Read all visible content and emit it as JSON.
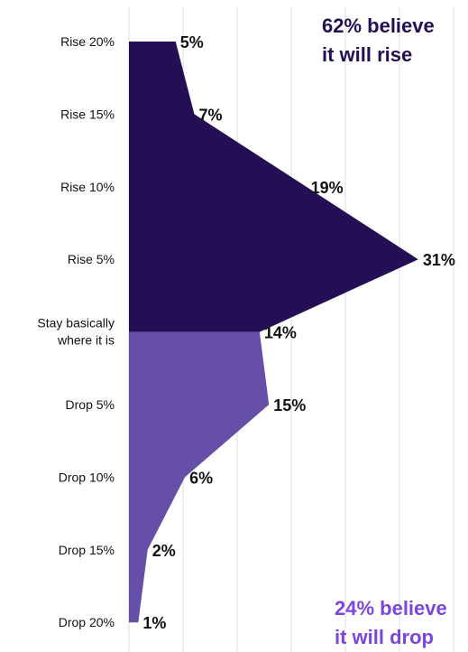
{
  "colors": {
    "rise": "#240f55",
    "drop": "#664fa8",
    "grid": "#dcdcdc",
    "text": "#111111",
    "callout_rise": "#240f55",
    "callout_drop": "#7c45e0"
  },
  "callouts": {
    "rise_line1": "62% believe",
    "rise_line2": "it will rise",
    "drop_line1": "24% believe",
    "drop_line2": "it will drop"
  },
  "chart_data": {
    "type": "area",
    "orientation": "horizontal",
    "categories": [
      "Rise 20%",
      "Rise 15%",
      "Rise 10%",
      "Rise 5%",
      "Stay basically where it is",
      "Drop 5%",
      "Drop 10%",
      "Drop 15%",
      "Drop 20%"
    ],
    "category_lines": [
      [
        "Rise 20%"
      ],
      [
        "Rise 15%"
      ],
      [
        "Rise 10%"
      ],
      [
        "Rise 5%"
      ],
      [
        "Stay basically",
        "where it is"
      ],
      [
        "Drop 5%"
      ],
      [
        "Drop 10%"
      ],
      [
        "Drop 15%"
      ],
      [
        "Drop 20%"
      ]
    ],
    "values": [
      5,
      7,
      19,
      31,
      14,
      15,
      6,
      2,
      1
    ],
    "value_labels": [
      "5%",
      "7%",
      "19%",
      "31%",
      "14%",
      "15%",
      "6%",
      "2%",
      "1%"
    ],
    "groups": [
      {
        "name": "rise",
        "from": 0,
        "to": 4
      },
      {
        "name": "drop",
        "from": 4,
        "to": 8
      }
    ],
    "xlim": [
      0,
      35
    ],
    "grid": true,
    "title": "",
    "xlabel": "",
    "ylabel": ""
  }
}
